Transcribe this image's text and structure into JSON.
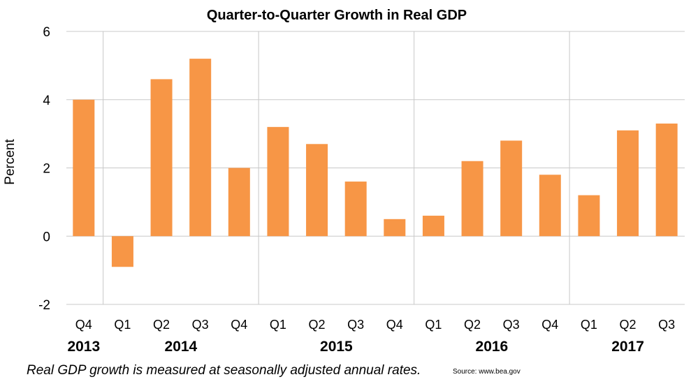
{
  "chart_data": {
    "type": "bar",
    "title": "Quarter-to-Quarter Growth in Real GDP",
    "ylabel": "Percent",
    "xlabel": "",
    "ylim": [
      -2,
      6
    ],
    "yticks": [
      -2,
      0,
      2,
      4,
      6
    ],
    "grid": true,
    "bar_color": "#F79646",
    "categories": [
      "Q4",
      "Q1",
      "Q2",
      "Q3",
      "Q4",
      "Q1",
      "Q2",
      "Q3",
      "Q4",
      "Q1",
      "Q2",
      "Q3",
      "Q4",
      "Q1",
      "Q2",
      "Q3"
    ],
    "years": [
      {
        "label": "2013",
        "start": 0,
        "count": 1
      },
      {
        "label": "2014",
        "start": 1,
        "count": 4
      },
      {
        "label": "2015",
        "start": 5,
        "count": 4
      },
      {
        "label": "2016",
        "start": 9,
        "count": 4
      },
      {
        "label": "2017",
        "start": 13,
        "count": 3
      }
    ],
    "values": [
      4.0,
      -0.9,
      4.6,
      5.2,
      2.0,
      3.2,
      2.7,
      1.6,
      0.5,
      0.6,
      2.2,
      2.8,
      1.8,
      1.2,
      3.1,
      3.3
    ]
  },
  "footnote": "Real GDP growth is measured at seasonally adjusted annual rates.",
  "source": "Source: www.bea.gov"
}
